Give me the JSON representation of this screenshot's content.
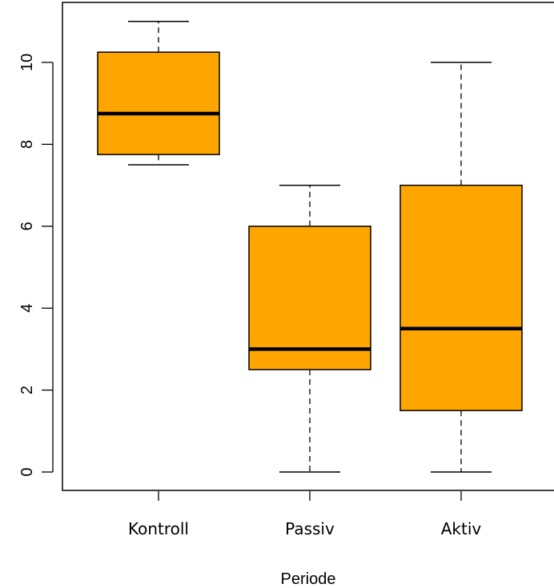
{
  "chart_data": {
    "type": "boxplot",
    "title": "",
    "xlabel": "Periode",
    "ylabel": "",
    "ylim": [
      -0.5,
      11.5
    ],
    "yticks": [
      0,
      2,
      4,
      6,
      8,
      10
    ],
    "ytick_labels": [
      "0",
      "2",
      "4",
      "6",
      "8",
      "10"
    ],
    "grid": false,
    "box_color": "#ffa500",
    "categories": [
      "Kontroll",
      "Passiv",
      "Aktiv"
    ],
    "boxes": [
      {
        "category": "Kontroll",
        "min": 7.5,
        "q1": 7.75,
        "median": 8.75,
        "q3": 10.25,
        "max": 11
      },
      {
        "category": "Passiv",
        "min": 0,
        "q1": 2.5,
        "median": 3,
        "q3": 6,
        "max": 7
      },
      {
        "category": "Aktiv",
        "min": 0,
        "q1": 1.5,
        "median": 3.5,
        "q3": 7,
        "max": 10
      }
    ]
  }
}
